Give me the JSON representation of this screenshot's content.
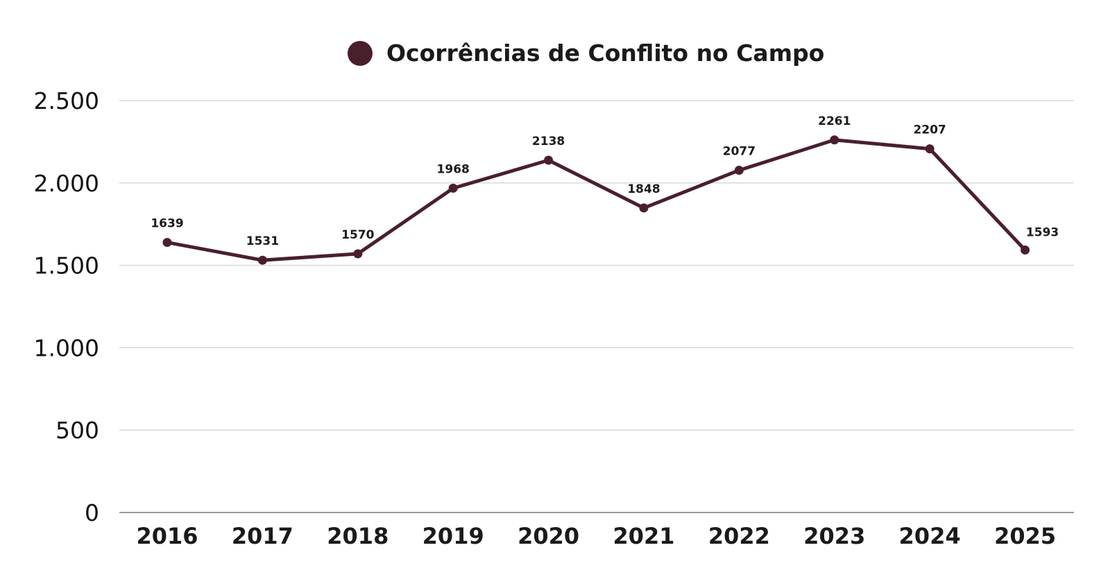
{
  "chart_data": {
    "type": "line",
    "title": "",
    "xlabel": "",
    "ylabel": "",
    "categories": [
      "2016",
      "2017",
      "2018",
      "2019",
      "2020",
      "2021",
      "2022",
      "2023",
      "2024",
      "2025"
    ],
    "series": [
      {
        "name": "Ocorrências de Conflito no Campo",
        "values": [
          1639,
          1531,
          1570,
          1968,
          2138,
          1848,
          2077,
          2261,
          2207,
          1593
        ],
        "color": "#4a1f2c"
      }
    ],
    "data_labels": [
      "1639",
      "1531",
      "1570",
      "1968",
      "2138",
      "1848",
      "2077",
      "2261",
      "2207",
      "1593"
    ],
    "ylim": [
      0,
      2500
    ],
    "yticks": [
      0,
      500,
      1000,
      1500,
      2000,
      2500
    ],
    "ytick_labels": [
      "0",
      "500",
      "1.000",
      "1.500",
      "2.000",
      "2.500"
    ],
    "grid": true,
    "legend": "top-center"
  }
}
